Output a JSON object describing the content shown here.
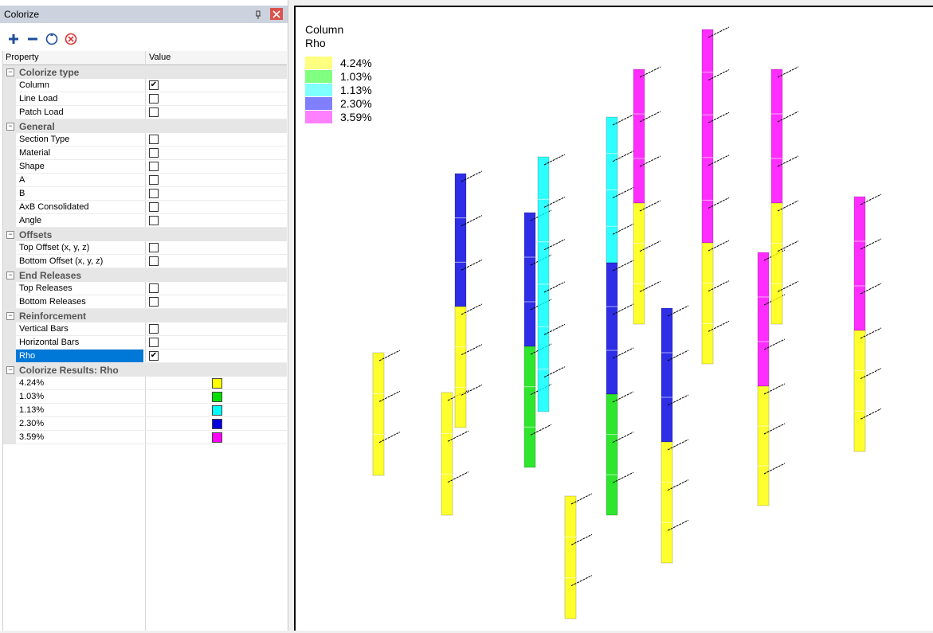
{
  "panel": {
    "title": "Colorize",
    "headers": [
      "Property",
      "Value"
    ],
    "groups": [
      {
        "label": "Colorize type",
        "items": [
          {
            "label": "Column",
            "checked": true
          },
          {
            "label": "Line Load",
            "checked": false
          },
          {
            "label": "Patch Load",
            "checked": false
          }
        ]
      },
      {
        "label": "General",
        "items": [
          {
            "label": "Section Type",
            "checked": false
          },
          {
            "label": "Material",
            "checked": false
          },
          {
            "label": "Shape",
            "checked": false
          },
          {
            "label": "A",
            "checked": false
          },
          {
            "label": "B",
            "checked": false
          },
          {
            "label": "AxB Consolidated",
            "checked": false
          },
          {
            "label": "Angle",
            "checked": false
          }
        ]
      },
      {
        "label": "Offsets",
        "items": [
          {
            "label": "Top Offset (x, y, z)",
            "checked": false
          },
          {
            "label": "Bottom Offset (x, y, z)",
            "checked": false
          }
        ]
      },
      {
        "label": "End Releases",
        "items": [
          {
            "label": "Top Releases",
            "checked": false
          },
          {
            "label": "Bottom Releases",
            "checked": false
          }
        ]
      },
      {
        "label": "Reinforcement",
        "items": [
          {
            "label": "Vertical Bars",
            "checked": false
          },
          {
            "label": "Horizontal Bars",
            "checked": false
          },
          {
            "label": "Rho",
            "checked": true,
            "selected": true
          }
        ]
      }
    ],
    "results": {
      "label": "Colorize Results: Rho",
      "items": [
        {
          "label": "4.24%",
          "color": "#ffff00"
        },
        {
          "label": "1.03%",
          "color": "#00e000"
        },
        {
          "label": "1.13%",
          "color": "#00ffff"
        },
        {
          "label": "2.30%",
          "color": "#0000e0"
        },
        {
          "label": "3.59%",
          "color": "#ff00ff"
        }
      ]
    }
  },
  "viewport": {
    "legend": {
      "title": "Column",
      "subtitle": "Rho",
      "items": [
        {
          "label": "4.24%",
          "color": "#ffff80"
        },
        {
          "label": "1.03%",
          "color": "#80ff80"
        },
        {
          "label": "1.13%",
          "color": "#80ffff"
        },
        {
          "label": "2.30%",
          "color": "#8080ff"
        },
        {
          "label": "3.59%",
          "color": "#ff80ff"
        }
      ]
    }
  }
}
